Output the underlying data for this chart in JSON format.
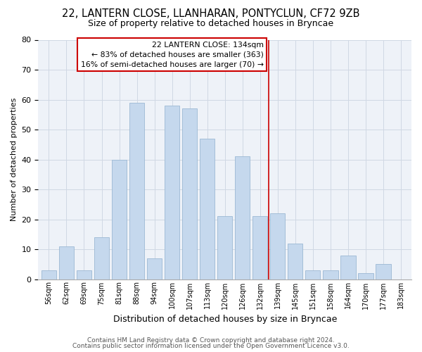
{
  "title1": "22, LANTERN CLOSE, LLANHARAN, PONTYCLUN, CF72 9ZB",
  "title2": "Size of property relative to detached houses in Bryncae",
  "xlabel": "Distribution of detached houses by size in Bryncae",
  "ylabel": "Number of detached properties",
  "bar_labels": [
    "56sqm",
    "62sqm",
    "69sqm",
    "75sqm",
    "81sqm",
    "88sqm",
    "94sqm",
    "100sqm",
    "107sqm",
    "113sqm",
    "120sqm",
    "126sqm",
    "132sqm",
    "139sqm",
    "145sqm",
    "151sqm",
    "158sqm",
    "164sqm",
    "170sqm",
    "177sqm",
    "183sqm"
  ],
  "bar_values": [
    3,
    11,
    3,
    14,
    40,
    59,
    7,
    58,
    57,
    47,
    21,
    41,
    21,
    22,
    12,
    3,
    3,
    8,
    2,
    5,
    0
  ],
  "bar_color": "#c5d8ed",
  "bar_edge_color": "#9bb8d4",
  "vline_color": "#cc0000",
  "annotation_title": "22 LANTERN CLOSE: 134sqm",
  "annotation_line1": "← 83% of detached houses are smaller (363)",
  "annotation_line2": "16% of semi-detached houses are larger (70) →",
  "annotation_box_edge": "#cc0000",
  "ylim": [
    0,
    80
  ],
  "yticks": [
    0,
    10,
    20,
    30,
    40,
    50,
    60,
    70,
    80
  ],
  "grid_color": "#d0d8e4",
  "footer1": "Contains HM Land Registry data © Crown copyright and database right 2024.",
  "footer2": "Contains public sector information licensed under the Open Government Licence v3.0.",
  "bg_color": "#eef2f8"
}
